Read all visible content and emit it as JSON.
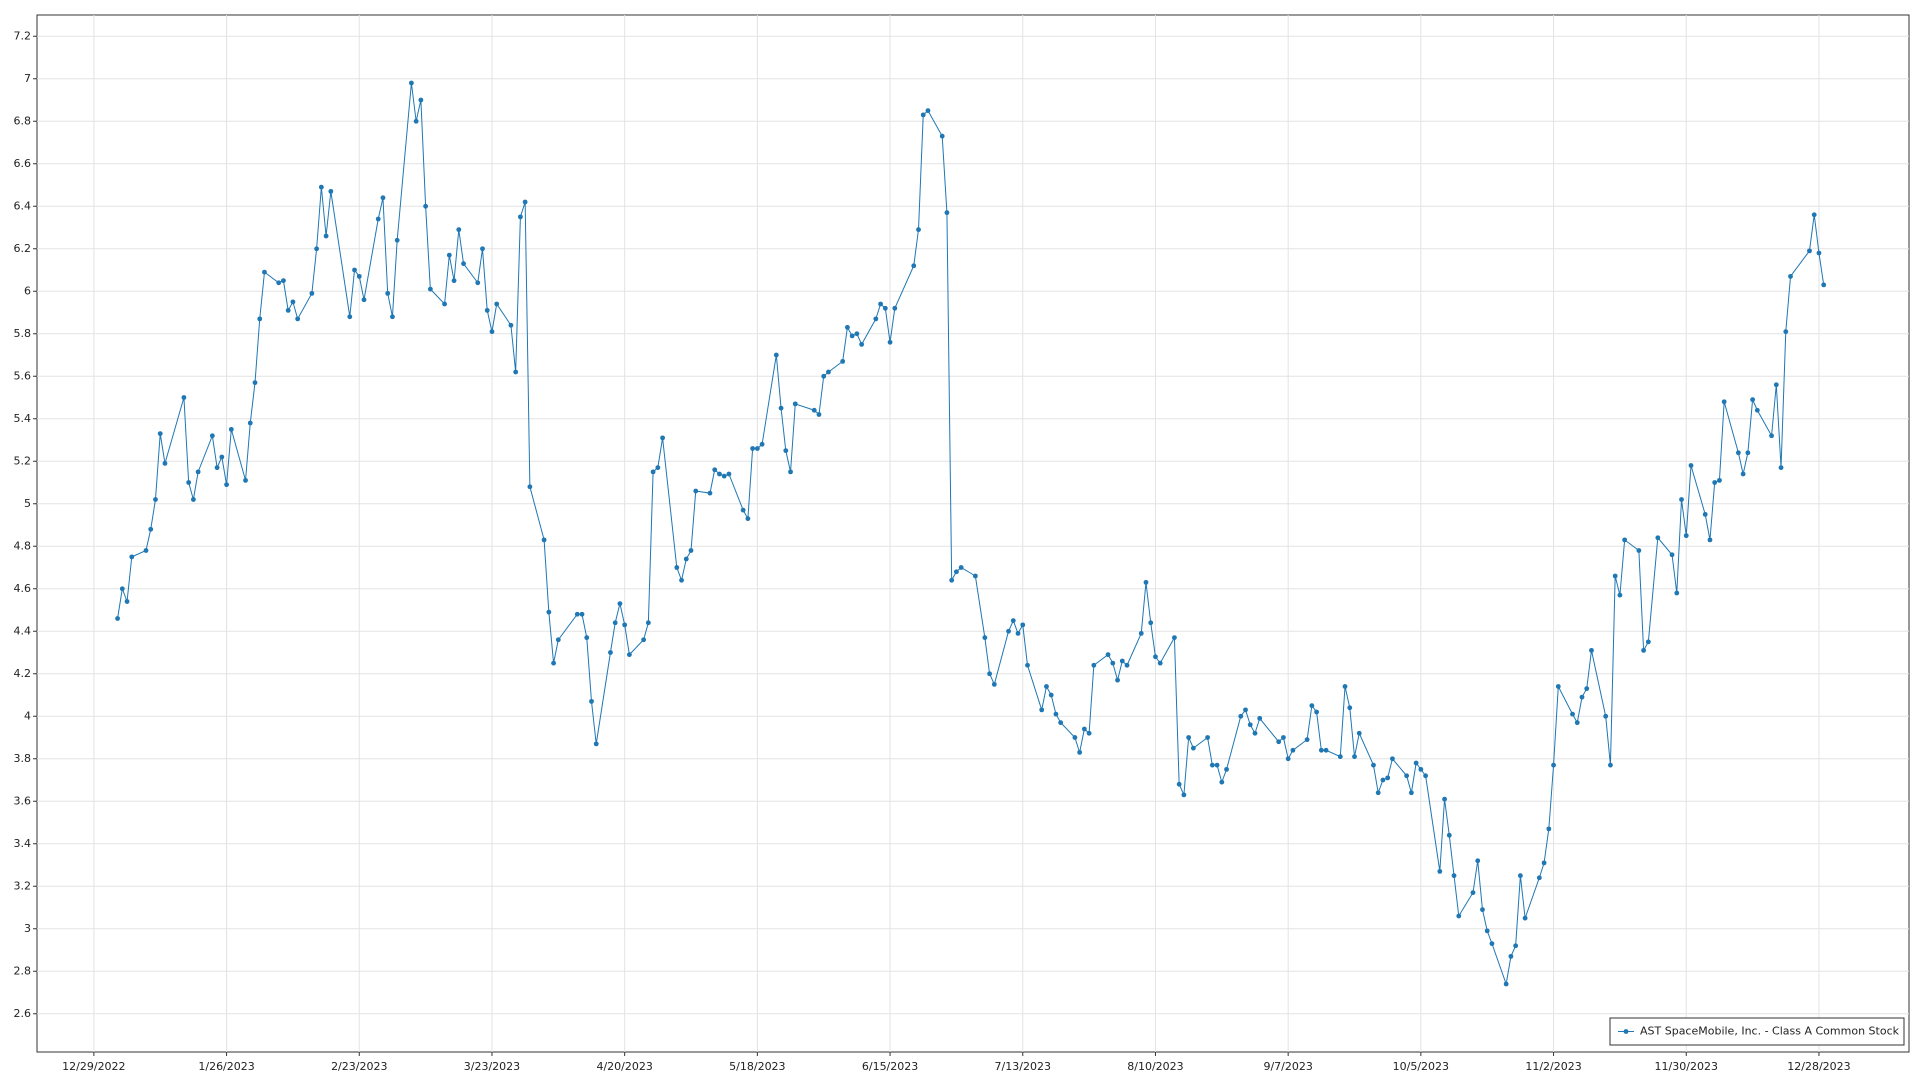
{
  "chart_data": {
    "type": "line",
    "x": [
      "1/3/2023",
      "1/4/2023",
      "1/5/2023",
      "1/6/2023",
      "1/9/2023",
      "1/10/2023",
      "1/11/2023",
      "1/12/2023",
      "1/13/2023",
      "1/17/2023",
      "1/18/2023",
      "1/19/2023",
      "1/20/2023",
      "1/23/2023",
      "1/24/2023",
      "1/25/2023",
      "1/26/2023",
      "1/27/2023",
      "1/30/2023",
      "1/31/2023",
      "2/1/2023",
      "2/2/2023",
      "2/3/2023",
      "2/6/2023",
      "2/7/2023",
      "2/8/2023",
      "2/9/2023",
      "2/10/2023",
      "2/13/2023",
      "2/14/2023",
      "2/15/2023",
      "2/16/2023",
      "2/17/2023",
      "2/21/2023",
      "2/22/2023",
      "2/23/2023",
      "2/24/2023",
      "2/27/2023",
      "2/28/2023",
      "3/1/2023",
      "3/2/2023",
      "3/3/2023",
      "3/6/2023",
      "3/7/2023",
      "3/8/2023",
      "3/9/2023",
      "3/10/2023",
      "3/13/2023",
      "3/14/2023",
      "3/15/2023",
      "3/16/2023",
      "3/17/2023",
      "3/20/2023",
      "3/21/2023",
      "3/22/2023",
      "3/23/2023",
      "3/24/2023",
      "3/27/2023",
      "3/28/2023",
      "3/29/2023",
      "3/30/2023",
      "3/31/2023",
      "4/3/2023",
      "4/4/2023",
      "4/5/2023",
      "4/6/2023",
      "4/10/2023",
      "4/11/2023",
      "4/12/2023",
      "4/13/2023",
      "4/14/2023",
      "4/17/2023",
      "4/18/2023",
      "4/19/2023",
      "4/20/2023",
      "4/21/2023",
      "4/24/2023",
      "4/25/2023",
      "4/26/2023",
      "4/27/2023",
      "4/28/2023",
      "5/1/2023",
      "5/2/2023",
      "5/3/2023",
      "5/4/2023",
      "5/5/2023",
      "5/8/2023",
      "5/9/2023",
      "5/10/2023",
      "5/11/2023",
      "5/12/2023",
      "5/15/2023",
      "5/16/2023",
      "5/17/2023",
      "5/18/2023",
      "5/19/2023",
      "5/22/2023",
      "5/23/2023",
      "5/24/2023",
      "5/25/2023",
      "5/26/2023",
      "5/30/2023",
      "5/31/2023",
      "6/1/2023",
      "6/2/2023",
      "6/5/2023",
      "6/6/2023",
      "6/7/2023",
      "6/8/2023",
      "6/9/2023",
      "6/12/2023",
      "6/13/2023",
      "6/14/2023",
      "6/15/2023",
      "6/16/2023",
      "6/20/2023",
      "6/21/2023",
      "6/22/2023",
      "6/23/2023",
      "6/26/2023",
      "6/27/2023",
      "6/28/2023",
      "6/29/2023",
      "6/30/2023",
      "7/3/2023",
      "7/5/2023",
      "7/6/2023",
      "7/7/2023",
      "7/10/2023",
      "7/11/2023",
      "7/12/2023",
      "7/13/2023",
      "7/14/2023",
      "7/17/2023",
      "7/18/2023",
      "7/19/2023",
      "7/20/2023",
      "7/21/2023",
      "7/24/2023",
      "7/25/2023",
      "7/26/2023",
      "7/27/2023",
      "7/28/2023",
      "7/31/2023",
      "8/1/2023",
      "8/2/2023",
      "8/3/2023",
      "8/4/2023",
      "8/7/2023",
      "8/8/2023",
      "8/9/2023",
      "8/10/2023",
      "8/11/2023",
      "8/14/2023",
      "8/15/2023",
      "8/16/2023",
      "8/17/2023",
      "8/18/2023",
      "8/21/2023",
      "8/22/2023",
      "8/23/2023",
      "8/24/2023",
      "8/25/2023",
      "8/28/2023",
      "8/29/2023",
      "8/30/2023",
      "8/31/2023",
      "9/1/2023",
      "9/5/2023",
      "9/6/2023",
      "9/7/2023",
      "9/8/2023",
      "9/11/2023",
      "9/12/2023",
      "9/13/2023",
      "9/14/2023",
      "9/15/2023",
      "9/18/2023",
      "9/19/2023",
      "9/20/2023",
      "9/21/2023",
      "9/22/2023",
      "9/25/2023",
      "9/26/2023",
      "9/27/2023",
      "9/28/2023",
      "9/29/2023",
      "10/2/2023",
      "10/3/2023",
      "10/4/2023",
      "10/5/2023",
      "10/6/2023",
      "10/9/2023",
      "10/10/2023",
      "10/11/2023",
      "10/12/2023",
      "10/13/2023",
      "10/16/2023",
      "10/17/2023",
      "10/18/2023",
      "10/19/2023",
      "10/20/2023",
      "10/23/2023",
      "10/24/2023",
      "10/25/2023",
      "10/26/2023",
      "10/27/2023",
      "10/30/2023",
      "10/31/2023",
      "11/1/2023",
      "11/2/2023",
      "11/3/2023",
      "11/6/2023",
      "11/7/2023",
      "11/8/2023",
      "11/9/2023",
      "11/10/2023",
      "11/13/2023",
      "11/14/2023",
      "11/15/2023",
      "11/16/2023",
      "11/17/2023",
      "11/20/2023",
      "11/21/2023",
      "11/22/2023",
      "11/24/2023",
      "11/27/2023",
      "11/28/2023",
      "11/29/2023",
      "11/30/2023",
      "12/1/2023",
      "12/4/2023",
      "12/5/2023",
      "12/6/2023",
      "12/7/2023",
      "12/8/2023",
      "12/11/2023",
      "12/12/2023",
      "12/13/2023",
      "12/14/2023",
      "12/15/2023",
      "12/18/2023",
      "12/19/2023",
      "12/20/2023",
      "12/21/2023",
      "12/22/2023",
      "12/26/2023",
      "12/27/2023",
      "12/28/2023",
      "12/29/2023"
    ],
    "series": [
      {
        "name": "AST SpaceMobile, Inc. - Class A Common Stock",
        "color": "#1f77b4",
        "values": [
          4.46,
          4.6,
          4.54,
          4.75,
          4.78,
          4.88,
          5.02,
          5.33,
          5.19,
          5.5,
          5.1,
          5.02,
          5.15,
          5.32,
          5.17,
          5.22,
          5.09,
          5.35,
          5.11,
          5.38,
          5.57,
          5.87,
          6.09,
          6.04,
          6.05,
          5.91,
          5.95,
          5.87,
          5.99,
          6.2,
          6.49,
          6.26,
          6.47,
          5.88,
          6.1,
          6.07,
          5.96,
          6.34,
          6.44,
          5.99,
          5.88,
          6.24,
          6.98,
          6.8,
          6.9,
          6.4,
          6.01,
          5.94,
          6.17,
          6.05,
          6.29,
          6.13,
          6.04,
          6.2,
          5.91,
          5.81,
          5.94,
          5.84,
          5.62,
          6.35,
          6.42,
          5.08,
          4.83,
          4.49,
          4.25,
          4.36,
          4.48,
          4.48,
          4.37,
          4.07,
          3.87,
          4.3,
          4.44,
          4.53,
          4.43,
          4.29,
          4.36,
          4.44,
          5.15,
          5.17,
          5.31,
          4.7,
          4.64,
          4.74,
          4.78,
          5.06,
          5.05,
          5.16,
          5.14,
          5.13,
          5.14,
          4.97,
          4.93,
          5.26,
          5.26,
          5.28,
          5.7,
          5.45,
          5.25,
          5.15,
          5.47,
          5.44,
          5.42,
          5.6,
          5.62,
          5.67,
          5.83,
          5.79,
          5.8,
          5.75,
          5.87,
          5.94,
          5.92,
          5.76,
          5.92,
          6.12,
          6.29,
          6.83,
          6.85,
          6.73,
          6.37,
          4.64,
          4.68,
          4.7,
          4.66,
          4.37,
          4.2,
          4.15,
          4.4,
          4.45,
          4.39,
          4.43,
          4.24,
          4.03,
          4.14,
          4.1,
          4.01,
          3.97,
          3.9,
          3.83,
          3.94,
          3.92,
          4.24,
          4.29,
          4.25,
          4.17,
          4.26,
          4.24,
          4.39,
          4.63,
          4.44,
          4.28,
          4.25,
          4.37,
          3.68,
          3.63,
          3.9,
          3.85,
          3.9,
          3.77,
          3.77,
          3.69,
          3.75,
          4.0,
          4.03,
          3.96,
          3.92,
          3.99,
          3.88,
          3.9,
          3.8,
          3.84,
          3.89,
          4.05,
          4.02,
          3.84,
          3.84,
          3.81,
          4.14,
          4.04,
          3.81,
          3.92,
          3.77,
          3.64,
          3.7,
          3.71,
          3.8,
          3.72,
          3.64,
          3.78,
          3.75,
          3.72,
          3.27,
          3.61,
          3.44,
          3.25,
          3.06,
          3.17,
          3.32,
          3.09,
          2.99,
          2.93,
          2.74,
          2.87,
          2.92,
          3.25,
          3.05,
          3.24,
          3.31,
          3.47,
          3.77,
          4.14,
          4.01,
          3.97,
          4.09,
          4.13,
          4.31,
          4.0,
          3.77,
          4.66,
          4.57,
          4.83,
          4.78,
          4.31,
          4.35,
          4.84,
          4.76,
          4.58,
          5.02,
          4.85,
          5.18,
          4.95,
          4.83,
          5.1,
          5.11,
          5.48,
          5.24,
          5.14,
          5.24,
          5.49,
          5.44,
          5.32,
          5.56,
          5.17,
          5.81,
          6.07,
          6.19,
          6.36,
          6.18,
          6.03
        ]
      }
    ],
    "xlim": [
      "12/17/2022",
      "1/16/2024"
    ],
    "xticks": [
      "12/29/2022",
      "1/26/2023",
      "2/23/2023",
      "3/23/2023",
      "4/20/2023",
      "5/18/2023",
      "6/15/2023",
      "7/13/2023",
      "8/10/2023",
      "9/7/2023",
      "10/5/2023",
      "11/2/2023",
      "11/30/2023",
      "12/28/2023"
    ],
    "ylim": [
      2.42,
      7.3
    ],
    "yticks": [
      2.6,
      2.8,
      3,
      3.2,
      3.4,
      3.6,
      3.8,
      4,
      4.2,
      4.4,
      4.6,
      4.8,
      5,
      5.2,
      5.4,
      5.6,
      5.8,
      6,
      6.2,
      6.4,
      6.6,
      6.8,
      7,
      7.2
    ],
    "grid": true,
    "legend": "lower right"
  }
}
